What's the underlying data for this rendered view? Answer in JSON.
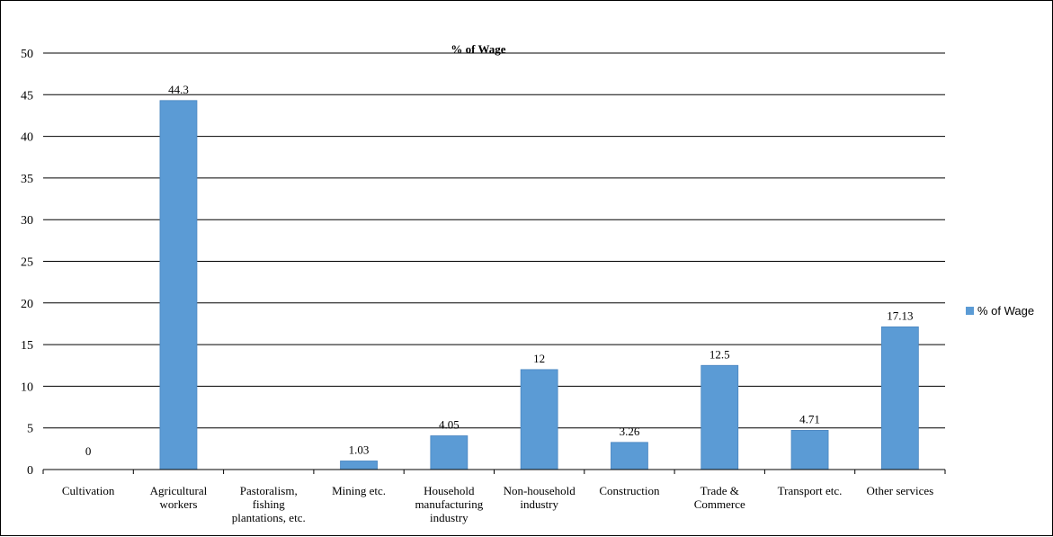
{
  "chart_data": {
    "type": "bar",
    "title": "% of Wage",
    "xlabel": "",
    "ylabel": "",
    "ylim": [
      0,
      50
    ],
    "yticks": [
      0,
      5,
      10,
      15,
      20,
      25,
      30,
      35,
      40,
      45,
      50
    ],
    "grid": true,
    "legend": "right",
    "categories": [
      "Cultivation",
      "Agricultural workers",
      "Pastoralism, fishing plantations, etc.",
      "Mining etc.",
      "Household manufacturing industry",
      "Non-household industry",
      "Construction",
      "Trade & Commerce",
      "Transport etc.",
      "Other services"
    ],
    "category_lines": [
      [
        "Cultivation"
      ],
      [
        "Agricultural",
        "workers"
      ],
      [
        "Pastoralism,",
        "fishing",
        "plantations, etc."
      ],
      [
        "Mining etc."
      ],
      [
        "Household",
        "manufacturing",
        "industry"
      ],
      [
        "Non-household",
        "industry"
      ],
      [
        "Construction"
      ],
      [
        "Trade &",
        "Commerce"
      ],
      [
        "Transport etc."
      ],
      [
        "Other services"
      ]
    ],
    "series": [
      {
        "name": "% of Wage",
        "color": "#5B9BD5",
        "values": [
          0,
          44.3,
          null,
          1.03,
          4.05,
          12,
          3.26,
          12.5,
          4.71,
          17.13
        ],
        "labels": [
          "0",
          "44.3",
          "",
          "1.03",
          "4.05",
          "12",
          "3.26",
          "12.5",
          "4.71",
          "17.13"
        ]
      }
    ]
  }
}
